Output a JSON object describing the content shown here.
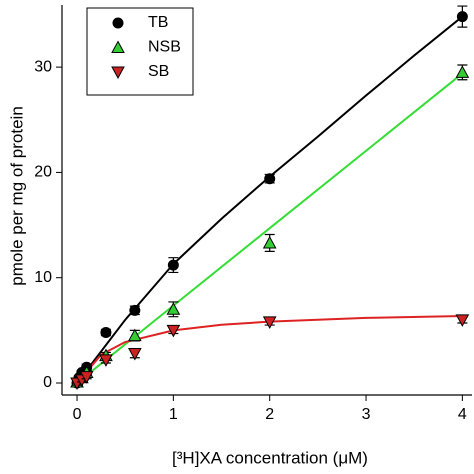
{
  "chart_data": {
    "type": "scatter",
    "xlabel": "[³H]XA concentration (μM)",
    "ylabel": "pmole per mg of protein",
    "xlim": [
      -0.156,
      4.1
    ],
    "ylim": [
      -1.14,
      35.9
    ],
    "xticks": [
      0,
      1,
      2,
      3,
      4
    ],
    "yticks": [
      0,
      10,
      20,
      30
    ],
    "legend": "upper left",
    "series": [
      {
        "name": "TB",
        "color": "#000000",
        "marker": "circle",
        "line_color": "#000000",
        "x": [
          0,
          0.02,
          0.05,
          0.1,
          0.3,
          0.6,
          1,
          2,
          4
        ],
        "values": [
          0,
          0.5,
          1.0,
          1.5,
          4.8,
          6.9,
          11.2,
          19.4,
          34.8
        ],
        "errors": [
          0.2,
          0.2,
          0.2,
          0.3,
          0.3,
          0.4,
          0.7,
          0.4,
          1.0
        ],
        "fit": {
          "x": [
            0,
            0.5,
            1,
            1.5,
            2,
            2.5,
            3,
            3.5,
            4
          ],
          "values": [
            0,
            6,
            11.3,
            15.6,
            19.6,
            23.4,
            27.3,
            31.1,
            34.8
          ]
        }
      },
      {
        "name": "NSB",
        "color": "#33cc33",
        "marker": "triangle-up",
        "line_color": "#33dd33",
        "x": [
          0,
          0.05,
          0.1,
          0.3,
          0.6,
          1,
          2,
          4
        ],
        "values": [
          0.1,
          0.5,
          1.0,
          2.6,
          4.5,
          7.0,
          13.3,
          29.5
        ],
        "errors": [
          0.2,
          0.2,
          0.2,
          0.3,
          0.5,
          0.7,
          0.8,
          0.7
        ],
        "fit": {
          "x": [
            0,
            4
          ],
          "values": [
            0,
            29.4
          ]
        }
      },
      {
        "name": "SB",
        "color": "#cc2222",
        "marker": "triangle-down",
        "line_color": "#dd2222",
        "x": [
          0,
          0.05,
          0.1,
          0.3,
          0.6,
          1,
          2,
          4
        ],
        "values": [
          0,
          0.3,
          0.6,
          2.2,
          2.8,
          5.0,
          5.8,
          6.0
        ],
        "errors": [
          0.2,
          0.2,
          0.2,
          0.3,
          0.4,
          0.3,
          0.3,
          0.3
        ],
        "fit": {
          "x": [
            0,
            0.25,
            0.5,
            1,
            1.5,
            2,
            3,
            4
          ],
          "values": [
            0,
            2.69,
            3.89,
            5,
            5.53,
            5.83,
            6.18,
            6.36
          ]
        }
      }
    ]
  }
}
